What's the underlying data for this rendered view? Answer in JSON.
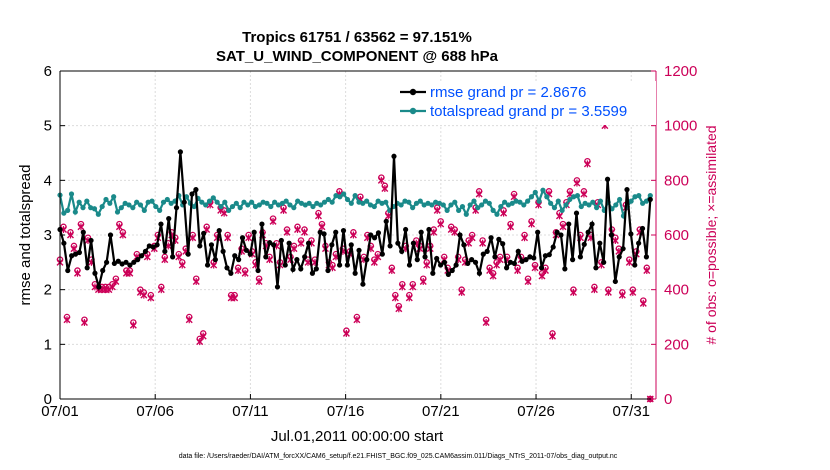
{
  "chart_data": {
    "type": "line",
    "title": "Tropics 61751 / 63562 = 97.151%",
    "subtitle": "SAT_U_WIND_COMPONENT @ 688 hPa",
    "xlabel": "Jul.01,2011 00:00:00 start",
    "ylabel_left": "rmse and totalspread",
    "ylabel_right": "# of obs: o=possible; ×=assimilated",
    "footer": "data file: /Users/raeder/DAI/ATM_forcXX/CAM6_setup/f.e21.FHIST_BGC.f09_025.CAM6assim.011/Diags_NTrS_2011-07/obs_diag_output.nc",
    "xlim": [
      1,
      32.3
    ],
    "ylim_left": [
      0,
      6
    ],
    "ylim_right": [
      0,
      1200
    ],
    "x_tick_labels": [
      "07/01",
      "07/06",
      "07/11",
      "07/16",
      "07/21",
      "07/26",
      "07/31"
    ],
    "x_tick_values": [
      1,
      6,
      11,
      16,
      21,
      26,
      31
    ],
    "y_left_ticks": [
      0,
      1,
      2,
      3,
      4,
      5,
      6
    ],
    "y_right_ticks": [
      0,
      200,
      400,
      600,
      800,
      1000,
      1200
    ],
    "legend": [
      {
        "label": "rmse grand pr = 2.8676",
        "color": "#000000"
      },
      {
        "label": "totalspread grand pr = 3.5599",
        "color": "#1a8a8a"
      }
    ],
    "colors": {
      "rmse": "#000000",
      "spread": "#1a8a8a",
      "obs": "#cc0058"
    },
    "series": [
      {
        "name": "rmse",
        "axis": "left",
        "values": [
          3.1,
          2.85,
          2.35,
          2.62,
          2.65,
          2.68,
          3.05,
          2.4,
          2.9,
          2.3,
          2.05,
          2.35,
          2.5,
          3.0,
          2.48,
          2.52,
          2.47,
          2.5,
          2.45,
          2.5,
          2.55,
          2.62,
          2.7,
          2.8,
          2.78,
          2.82,
          3.2,
          2.7,
          3.3,
          2.6,
          3.5,
          4.52,
          3.6,
          2.65,
          3.75,
          3.83,
          2.8,
          3.03,
          2.45,
          2.82,
          2.55,
          3.08,
          2.7,
          2.4,
          2.3,
          2.62,
          2.55,
          2.95,
          2.72,
          2.65,
          3.05,
          2.35,
          3.2,
          2.6,
          2.86,
          2.82,
          2.05,
          2.9,
          2.45,
          2.85,
          2.37,
          2.55,
          2.38,
          2.6,
          2.85,
          2.3,
          2.38,
          3.05,
          3.02,
          2.35,
          2.82,
          3.05,
          2.45,
          3.08,
          2.45,
          2.82,
          2.3,
          2.72,
          2.1,
          2.55,
          3.0,
          2.95,
          3.04,
          2.65,
          3.25,
          2.8,
          4.44,
          2.85,
          2.7,
          3.1,
          2.45,
          2.85,
          2.55,
          3.05,
          2.6,
          3.1,
          2.3,
          2.57,
          2.45,
          2.5,
          2.28,
          2.35,
          2.45,
          3.0,
          2.82,
          2.48,
          2.55,
          2.5,
          2.3,
          2.65,
          2.7,
          2.95,
          2.6,
          2.92,
          2.84,
          2.4,
          2.5,
          2.48,
          2.7,
          2.52,
          2.55,
          2.6,
          2.58,
          3.05,
          2.4,
          2.62,
          2.64,
          2.78,
          3.05,
          3.0,
          2.38,
          3.2,
          2.55,
          3.4,
          2.6,
          2.83,
          3.05,
          3.2,
          2.4,
          2.85,
          2.5,
          4.02,
          3.0,
          2.15,
          2.6,
          2.75,
          3.83,
          3.02,
          2.45,
          2.85,
          3.12,
          2.6,
          3.65
        ]
      },
      {
        "name": "totalspread",
        "axis": "left",
        "values": [
          3.73,
          3.4,
          3.45,
          3.75,
          3.42,
          3.6,
          3.5,
          3.62,
          3.5,
          3.48,
          3.38,
          3.52,
          3.65,
          3.58,
          3.7,
          3.42,
          3.5,
          3.58,
          3.55,
          3.5,
          3.6,
          3.55,
          3.45,
          3.6,
          3.62,
          3.52,
          3.45,
          3.6,
          3.65,
          3.58,
          3.62,
          3.72,
          3.55,
          3.7,
          3.58,
          3.52,
          3.67,
          3.6,
          3.55,
          3.62,
          3.68,
          3.6,
          3.52,
          3.6,
          3.45,
          3.52,
          3.58,
          3.5,
          3.6,
          3.55,
          3.6,
          3.52,
          3.55,
          3.6,
          3.58,
          3.52,
          3.6,
          3.55,
          3.58,
          3.62,
          3.55,
          3.5,
          3.62,
          3.58,
          3.55,
          3.58,
          3.52,
          3.58,
          3.55,
          3.6,
          3.65,
          3.6,
          3.72,
          3.7,
          3.75,
          3.65,
          3.58,
          3.72,
          3.6,
          3.58,
          3.62,
          3.55,
          3.52,
          3.62,
          3.58,
          3.6,
          3.45,
          3.52,
          3.58,
          3.55,
          3.62,
          3.6,
          3.5,
          3.58,
          3.62,
          3.55,
          3.58,
          3.55,
          3.6,
          3.58,
          3.55,
          3.45,
          3.55,
          3.6,
          3.45,
          3.52,
          3.38,
          3.55,
          3.62,
          3.5,
          3.55,
          3.62,
          3.58,
          3.45,
          3.38,
          3.52,
          3.6,
          3.55,
          3.58,
          3.62,
          3.6,
          3.55,
          3.62,
          3.7,
          3.78,
          3.62,
          3.82,
          3.7,
          3.58,
          3.5,
          3.62,
          3.45,
          3.55,
          3.65,
          3.7,
          3.72,
          3.52,
          3.58,
          3.55,
          3.6,
          3.5,
          3.62,
          3.45,
          3.6,
          3.48,
          3.55,
          3.65,
          3.35,
          3.52,
          3.62,
          3.7,
          3.72,
          3.58,
          3.62,
          3.72
        ]
      },
      {
        "name": "obs_possible",
        "axis": "right",
        "values": [
          510,
          630,
          300,
          610,
          560,
          470,
          640,
          290,
          590,
          510,
          420,
          410,
          410,
          410,
          410,
          420,
          440,
          640,
          610,
          470,
          470,
          280,
          530,
          400,
          390,
          530,
          380,
          560,
          600,
          410,
          520,
          570,
          610,
          590,
          530,
          500,
          550,
          300,
          600,
          440,
          220,
          240,
          630,
          720,
          500,
          600,
          700,
          690,
          600,
          380,
          380,
          480,
          550,
          470,
          600,
          540,
          500,
          440,
          610,
          570,
          520,
          660,
          570,
          500,
          700,
          620,
          520,
          560,
          630,
          580,
          620,
          510,
          580,
          510,
          680,
          640,
          560,
          500,
          490,
          530,
          760,
          550,
          250,
          540,
          610,
          300,
          740,
          520,
          600,
          560,
          510,
          530,
          810,
          780,
          680,
          480,
          380,
          340,
          420,
          560,
          380,
          420,
          580,
          560,
          440,
          500,
          560,
          620,
          700,
          650,
          520,
          480,
          630,
          620,
          520,
          400,
          510,
          580,
          600,
          700,
          760,
          580,
          290,
          480,
          460,
          500,
          520,
          690,
          520,
          640,
          750,
          480,
          520,
          600,
          440,
          650,
          490,
          720,
          460,
          480,
          760,
          240,
          610,
          680,
          640,
          720,
          760,
          400,
          800,
          600,
          760,
          870,
          600,
          410,
          720,
          500,
          1030,
          400,
          620,
          590,
          550,
          390,
          710,
          510,
          400,
          540,
          620,
          360,
          480,
          0
        ]
      },
      {
        "name": "obs_assimilated",
        "axis": "right",
        "values": [
          500,
          620,
          290,
          600,
          550,
          460,
          630,
          280,
          580,
          500,
          410,
          400,
          400,
          400,
          400,
          410,
          430,
          630,
          600,
          460,
          460,
          270,
          520,
          390,
          380,
          520,
          370,
          550,
          590,
          400,
          510,
          560,
          600,
          580,
          520,
          490,
          540,
          290,
          590,
          430,
          210,
          230,
          620,
          710,
          490,
          590,
          690,
          680,
          590,
          370,
          370,
          470,
          540,
          460,
          590,
          530,
          490,
          430,
          600,
          560,
          510,
          650,
          560,
          490,
          690,
          610,
          510,
          550,
          620,
          570,
          610,
          500,
          570,
          500,
          670,
          630,
          550,
          490,
          480,
          520,
          750,
          540,
          240,
          530,
          600,
          290,
          730,
          510,
          590,
          550,
          500,
          520,
          800,
          770,
          670,
          470,
          370,
          330,
          410,
          550,
          370,
          410,
          570,
          550,
          430,
          490,
          550,
          610,
          690,
          640,
          510,
          470,
          620,
          610,
          510,
          390,
          500,
          570,
          590,
          690,
          750,
          570,
          280,
          470,
          450,
          490,
          510,
          680,
          510,
          630,
          740,
          470,
          510,
          590,
          430,
          640,
          480,
          710,
          450,
          470,
          750,
          230,
          600,
          670,
          630,
          710,
          750,
          390,
          790,
          590,
          750,
          860,
          590,
          400,
          710,
          490,
          1000,
          390,
          610,
          580,
          540,
          380,
          700,
          500,
          390,
          530,
          610,
          350,
          470,
          0
        ]
      }
    ]
  }
}
